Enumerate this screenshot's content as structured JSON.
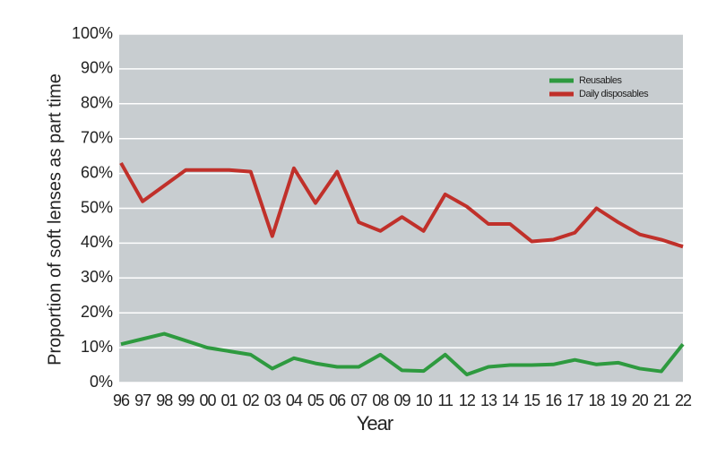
{
  "chart_data": {
    "type": "line",
    "x_label": "Year",
    "y_label": "Proportion of soft lenses as part time",
    "categories": [
      "96",
      "97",
      "98",
      "99",
      "00",
      "01",
      "02",
      "03",
      "04",
      "05",
      "06",
      "07",
      "08",
      "09",
      "10",
      "11",
      "12",
      "13",
      "14",
      "15",
      "16",
      "17",
      "18",
      "19",
      "20",
      "21",
      "22"
    ],
    "series": [
      {
        "name": "Reusables",
        "color": "#2e9a3f",
        "values": [
          11,
          12.5,
          14,
          12,
          10,
          9,
          8,
          4,
          7,
          5.5,
          4.5,
          4.5,
          8,
          3.5,
          3.3,
          8,
          2.3,
          4.5,
          5,
          5,
          5.2,
          6.5,
          5.2,
          5.7,
          4,
          3.2,
          11
        ]
      },
      {
        "name": "Daily disposables",
        "color": "#c0302a",
        "values": [
          63,
          52,
          56.5,
          61,
          61,
          61,
          60.5,
          42,
          61.5,
          51.5,
          60.5,
          46,
          43.5,
          47.5,
          43.5,
          54,
          50.5,
          45.5,
          45.5,
          40.5,
          41,
          43,
          50,
          46,
          42.5,
          41,
          39
        ]
      }
    ],
    "ylim": [
      0,
      100
    ],
    "yticks": [
      {
        "value": 0,
        "label": "0%"
      },
      {
        "value": 10,
        "label": "10%"
      },
      {
        "value": 20,
        "label": "20%"
      },
      {
        "value": 30,
        "label": "30%"
      },
      {
        "value": 40,
        "label": "40%"
      },
      {
        "value": 50,
        "label": "50%"
      },
      {
        "value": 60,
        "label": "60%"
      },
      {
        "value": 70,
        "label": "70%"
      },
      {
        "value": 80,
        "label": "80%"
      },
      {
        "value": 90,
        "label": "90%"
      },
      {
        "value": 100,
        "label": "100%"
      }
    ],
    "grid": true,
    "legend": "upper right"
  }
}
